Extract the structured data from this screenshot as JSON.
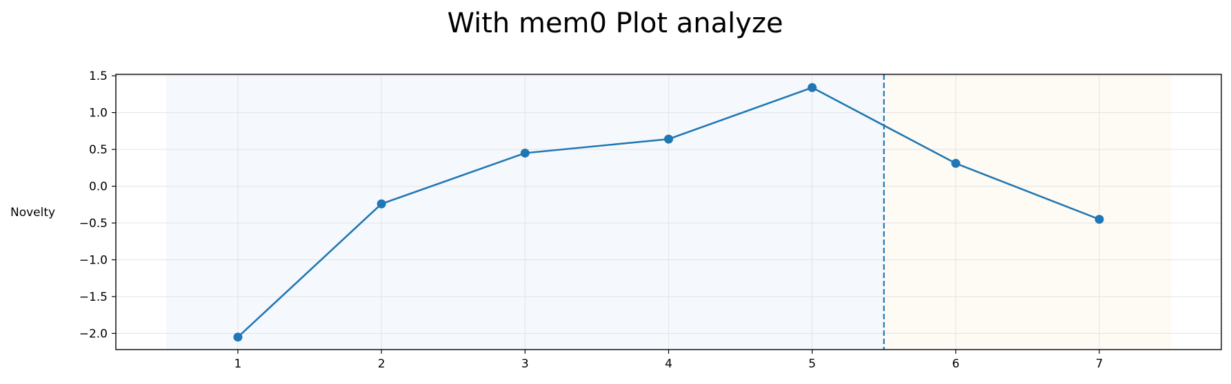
{
  "chart_data": {
    "type": "line",
    "title": "With mem0 Plot analyze",
    "xlabel": "",
    "ylabel": "Novelty",
    "x": [
      1,
      2,
      3,
      4,
      5,
      6,
      7
    ],
    "series": [
      {
        "values": [
          -2.05,
          -0.24,
          0.45,
          0.64,
          1.34,
          0.31,
          -0.45
        ]
      }
    ],
    "xlim": [
      0.15,
      7.85
    ],
    "ylim": [
      -2.22,
      1.52
    ],
    "xticks": [
      "1",
      "2",
      "3",
      "4",
      "5",
      "6",
      "7"
    ],
    "yticks": [
      "1.5",
      "1.0",
      "0.5",
      "0.0",
      "−0.5",
      "−1.0",
      "−1.5",
      "−2.0"
    ],
    "ytick_values": [
      1.5,
      1.0,
      0.5,
      0.0,
      -0.5,
      -1.0,
      -1.5,
      -2.0
    ],
    "vline_x": 5.5,
    "shaded_regions": [
      {
        "from": 0.5,
        "to": 5.5,
        "color": "#f5f8fc"
      },
      {
        "from": 5.5,
        "to": 7.5,
        "color": "#fefaf4"
      }
    ],
    "grid": true,
    "line_color": "#1f77b4",
    "marker": "circle"
  }
}
